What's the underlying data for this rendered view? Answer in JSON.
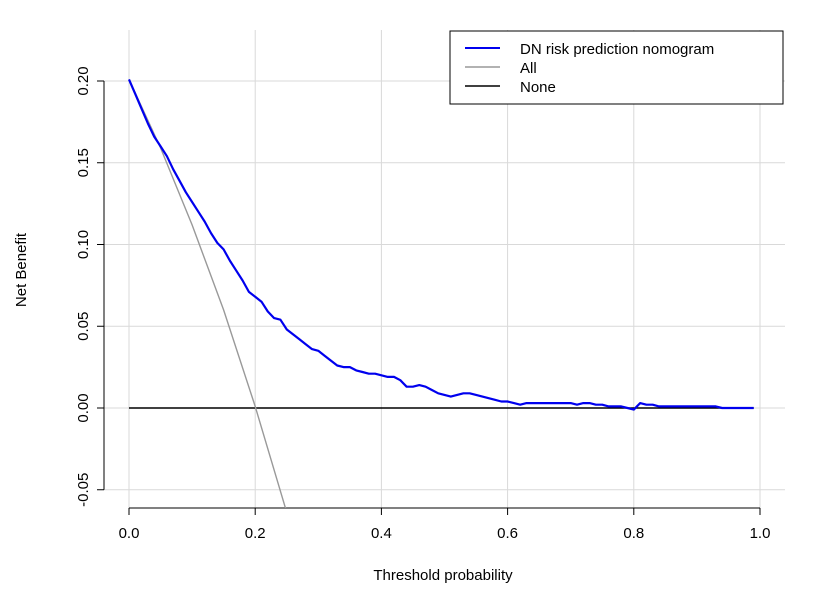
{
  "chart_data": {
    "type": "line",
    "title": "",
    "xlabel": "Threshold probability",
    "ylabel": "Net Benefit",
    "xlim": [
      0.0,
      1.0
    ],
    "ylim": [
      -0.06,
      0.21
    ],
    "x_ticks": [
      "0.0",
      "0.2",
      "0.4",
      "0.6",
      "0.8",
      "1.0"
    ],
    "y_ticks": [
      "-0.05",
      "0.00",
      "0.05",
      "0.10",
      "0.15",
      "0.20"
    ],
    "grid": true,
    "legend_position": "top-right",
    "series": [
      {
        "name": "DN risk prediction nomogram",
        "color": "#0000ee",
        "x": [
          0.0,
          0.01,
          0.02,
          0.03,
          0.04,
          0.05,
          0.06,
          0.07,
          0.08,
          0.09,
          0.1,
          0.11,
          0.12,
          0.13,
          0.14,
          0.15,
          0.16,
          0.17,
          0.18,
          0.19,
          0.2,
          0.21,
          0.22,
          0.23,
          0.24,
          0.25,
          0.26,
          0.27,
          0.28,
          0.29,
          0.3,
          0.31,
          0.32,
          0.33,
          0.34,
          0.35,
          0.36,
          0.37,
          0.38,
          0.39,
          0.4,
          0.41,
          0.42,
          0.43,
          0.44,
          0.45,
          0.46,
          0.47,
          0.48,
          0.49,
          0.5,
          0.51,
          0.52,
          0.53,
          0.54,
          0.55,
          0.56,
          0.57,
          0.58,
          0.59,
          0.6,
          0.61,
          0.62,
          0.63,
          0.64,
          0.65,
          0.66,
          0.67,
          0.68,
          0.69,
          0.7,
          0.71,
          0.72,
          0.73,
          0.74,
          0.75,
          0.76,
          0.77,
          0.78,
          0.79,
          0.8,
          0.81,
          0.82,
          0.83,
          0.84,
          0.85,
          0.86,
          0.87,
          0.88,
          0.89,
          0.9,
          0.91,
          0.92,
          0.93,
          0.94,
          0.95,
          0.96,
          0.97,
          0.98,
          0.99
        ],
        "y": [
          0.201,
          0.192,
          0.183,
          0.174,
          0.166,
          0.16,
          0.154,
          0.146,
          0.139,
          0.132,
          0.126,
          0.12,
          0.114,
          0.107,
          0.101,
          0.097,
          0.09,
          0.084,
          0.078,
          0.071,
          0.068,
          0.065,
          0.059,
          0.055,
          0.054,
          0.048,
          0.045,
          0.042,
          0.039,
          0.036,
          0.035,
          0.032,
          0.029,
          0.026,
          0.025,
          0.025,
          0.023,
          0.022,
          0.021,
          0.021,
          0.02,
          0.019,
          0.019,
          0.017,
          0.013,
          0.013,
          0.014,
          0.013,
          0.011,
          0.009,
          0.008,
          0.007,
          0.008,
          0.009,
          0.009,
          0.008,
          0.007,
          0.006,
          0.005,
          0.004,
          0.004,
          0.003,
          0.002,
          0.003,
          0.003,
          0.003,
          0.003,
          0.003,
          0.003,
          0.003,
          0.003,
          0.002,
          0.003,
          0.003,
          0.002,
          0.002,
          0.001,
          0.001,
          0.001,
          0.0,
          -0.001,
          0.003,
          0.002,
          0.002,
          0.001,
          0.001,
          0.001,
          0.001,
          0.001,
          0.001,
          0.001,
          0.001,
          0.001,
          0.001,
          0.0,
          0.0,
          0.0,
          0.0,
          0.0,
          0.0
        ]
      },
      {
        "name": "All",
        "color": "#999999",
        "x": [
          0.0,
          0.05,
          0.1,
          0.15,
          0.2,
          0.25
        ],
        "y": [
          0.201,
          0.159,
          0.112,
          0.06,
          0.001,
          -0.064
        ]
      },
      {
        "name": "None",
        "color": "#000000",
        "x": [
          0.0,
          0.99
        ],
        "y": [
          0.0,
          0.0
        ]
      }
    ]
  }
}
